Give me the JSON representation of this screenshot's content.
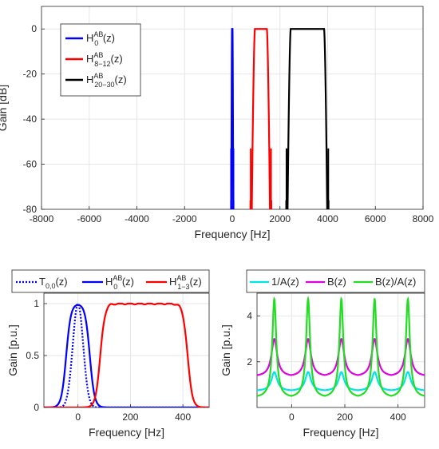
{
  "chart_data": [
    {
      "type": "line",
      "xlabel": "Frequency [Hz]",
      "ylabel": "Gain [dB]",
      "xlim": [
        -8000,
        8000
      ],
      "ylim": [
        -80,
        10
      ],
      "xticks": [
        "-8000",
        "-6000",
        "-4000",
        "-2000",
        "0",
        "2000",
        "4000",
        "6000",
        "8000"
      ],
      "yticks": [
        "0",
        "-20",
        "-40",
        "-60",
        "-80"
      ],
      "grid": true,
      "legend_position": "top-left",
      "series": [
        {
          "name": "H_0^AB(z)",
          "label_main": "H",
          "label_sub": "0",
          "label_sup": "AB",
          "label_tail": "(z)",
          "color": "#0000ff",
          "passband": [
            -10,
            10
          ],
          "edge_width": 30
        },
        {
          "name": "H_8-12^AB(z)",
          "label_main": "H",
          "label_sub": "8−12",
          "label_sup": "AB",
          "label_tail": "(z)",
          "color": "#ff0000",
          "passband": [
            950,
            1450
          ],
          "edge_width": 130
        },
        {
          "name": "H_20-30^AB(z)",
          "label_main": "H",
          "label_sub": "20−30",
          "label_sup": "AB",
          "label_tail": "(z)",
          "color": "#000000",
          "passband": [
            2450,
            3850
          ],
          "edge_width": 130
        }
      ]
    },
    {
      "type": "line",
      "xlabel": "Frequency [Hz]",
      "ylabel": "Gain [p.u.]",
      "xlim": [
        -130,
        500
      ],
      "ylim": [
        0,
        1.1
      ],
      "xticks": [
        "0",
        "200",
        "400"
      ],
      "yticks": [
        "0",
        "0.5",
        "1"
      ],
      "grid": true,
      "legend_position": "top",
      "series": [
        {
          "name": "T_0,0(z)",
          "label_main": "T",
          "label_sub": "0,0",
          "label_sup": "",
          "label_tail": "(z)",
          "color": "#0000ff",
          "style": "dotted"
        },
        {
          "name": "H_0^AB(z)",
          "label_main": "H",
          "label_sub": "0",
          "label_sup": "AB",
          "label_tail": "(z)",
          "color": "#0000ff",
          "style": "solid"
        },
        {
          "name": "H_1-3^AB(z)",
          "label_main": "H",
          "label_sub": "1−3",
          "label_sup": "AB",
          "label_tail": "(z)",
          "color": "#ff0000",
          "style": "solid"
        }
      ]
    },
    {
      "type": "line",
      "xlabel": "Frequency [Hz]",
      "ylabel": "Gain [p.u.]",
      "xlim": [
        -130,
        500
      ],
      "ylim": [
        0,
        5
      ],
      "xticks": [
        "0",
        "200",
        "400"
      ],
      "yticks": [
        "2",
        "4"
      ],
      "grid": true,
      "legend_position": "top",
      "series": [
        {
          "name": "1/A(z)",
          "label_main": "1/A(z)",
          "label_sub": "",
          "label_sup": "",
          "label_tail": "",
          "color": "#00e5e5",
          "min": 0.72,
          "peak": 1.55
        },
        {
          "name": "B(z)",
          "label_main": "B(z)",
          "label_sub": "",
          "label_sup": "",
          "label_tail": "",
          "color": "#e000e0",
          "min": 1.35,
          "peak": 3.0
        },
        {
          "name": "B(z)/A(z)",
          "label_main": "B(z)/A(z)",
          "label_sub": "",
          "label_sup": "",
          "label_tail": "",
          "color": "#22dd22",
          "min": 0.42,
          "peak": 4.75
        }
      ],
      "peaks_x": [
        -65,
        62,
        187,
        312,
        437
      ]
    }
  ]
}
